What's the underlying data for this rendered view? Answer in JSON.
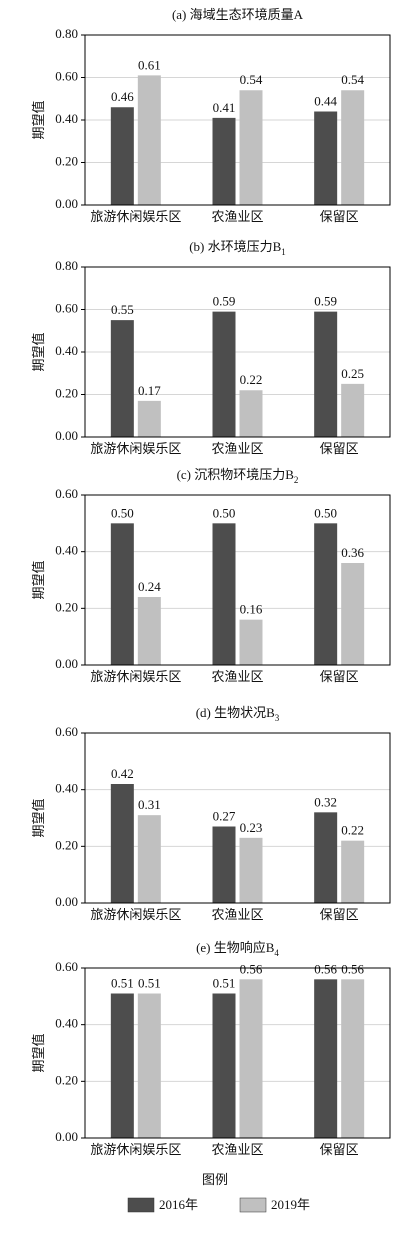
{
  "chart_data": [
    {
      "type": "bar",
      "title": "(a) 海域生态环境质量A",
      "title_sub": null,
      "ylabel": "期望值",
      "categories": [
        "旅游休闲娱乐区",
        "农渔业区",
        "保留区"
      ],
      "series": [
        {
          "color": "#4d4d4d",
          "values": [
            0.46,
            0.41,
            0.44
          ],
          "value_labels": [
            "0.46",
            "0.41",
            "0.44"
          ]
        },
        {
          "color": "#c0c0c0",
          "values": [
            0.61,
            0.54,
            0.54
          ],
          "value_labels": [
            "0.61",
            "0.54",
            "0.54"
          ]
        }
      ],
      "ylim": [
        0,
        0.8
      ],
      "yticks": [
        {
          "value": 0,
          "label": "0.00"
        },
        {
          "value": 0.2,
          "label": "0.20"
        },
        {
          "value": 0.4,
          "label": "0.40"
        },
        {
          "value": 0.6,
          "label": "0.60"
        },
        {
          "value": 0.8,
          "label": "0.80"
        }
      ],
      "grid": true
    },
    {
      "type": "bar",
      "title": "(b) 水环境压力B",
      "title_sub": "1",
      "ylabel": "期望值",
      "categories": [
        "旅游休闲娱乐区",
        "农渔业区",
        "保留区"
      ],
      "series": [
        {
          "color": "#4d4d4d",
          "values": [
            0.55,
            0.59,
            0.59
          ],
          "value_labels": [
            "0.55",
            "0.59",
            "0.59"
          ]
        },
        {
          "color": "#c0c0c0",
          "values": [
            0.17,
            0.22,
            0.25
          ],
          "value_labels": [
            "0.17",
            "0.22",
            "0.25"
          ]
        }
      ],
      "ylim": [
        0,
        0.8
      ],
      "yticks": [
        {
          "value": 0,
          "label": "0.00"
        },
        {
          "value": 0.2,
          "label": "0.20"
        },
        {
          "value": 0.4,
          "label": "0.40"
        },
        {
          "value": 0.6,
          "label": "0.60"
        },
        {
          "value": 0.8,
          "label": "0.80"
        }
      ],
      "grid": true
    },
    {
      "type": "bar",
      "title": "(c) 沉积物环境压力B",
      "title_sub": "2",
      "ylabel": "期望值",
      "categories": [
        "旅游休闲娱乐区",
        "农渔业区",
        "保留区"
      ],
      "series": [
        {
          "color": "#4d4d4d",
          "values": [
            0.5,
            0.5,
            0.5
          ],
          "value_labels": [
            "0.50",
            "0.50",
            "0.50"
          ]
        },
        {
          "color": "#c0c0c0",
          "values": [
            0.24,
            0.16,
            0.36
          ],
          "value_labels": [
            "0.24",
            "0.16",
            "0.36"
          ]
        }
      ],
      "ylim": [
        0,
        0.6
      ],
      "yticks": [
        {
          "value": 0,
          "label": "0.00"
        },
        {
          "value": 0.2,
          "label": "0.20"
        },
        {
          "value": 0.4,
          "label": "0.40"
        },
        {
          "value": 0.6,
          "label": "0.60"
        }
      ],
      "grid": true
    },
    {
      "type": "bar",
      "title": "(d) 生物状况B",
      "title_sub": "3",
      "ylabel": "期望值",
      "categories": [
        "旅游休闲娱乐区",
        "农渔业区",
        "保留区"
      ],
      "series": [
        {
          "color": "#4d4d4d",
          "values": [
            0.42,
            0.27,
            0.32
          ],
          "value_labels": [
            "0.42",
            "0.27",
            "0.32"
          ]
        },
        {
          "color": "#c0c0c0",
          "values": [
            0.31,
            0.23,
            0.22
          ],
          "value_labels": [
            "0.31",
            "0.23",
            "0.22"
          ]
        }
      ],
      "ylim": [
        0,
        0.6
      ],
      "yticks": [
        {
          "value": 0,
          "label": "0.00"
        },
        {
          "value": 0.2,
          "label": "0.20"
        },
        {
          "value": 0.4,
          "label": "0.40"
        },
        {
          "value": 0.6,
          "label": "0.60"
        }
      ],
      "grid": true
    },
    {
      "type": "bar",
      "title": "(e) 生物响应B",
      "title_sub": "4",
      "ylabel": "期望值",
      "categories": [
        "旅游休闲娱乐区",
        "农渔业区",
        "保留区"
      ],
      "series": [
        {
          "color": "#4d4d4d",
          "values": [
            0.51,
            0.51,
            0.56
          ],
          "value_labels": [
            "0.51",
            "0.51",
            "0.56"
          ]
        },
        {
          "color": "#c0c0c0",
          "values": [
            0.51,
            0.56,
            0.56
          ],
          "value_labels": [
            "0.51",
            "0.56",
            "0.56"
          ]
        }
      ],
      "ylim": [
        0,
        0.6
      ],
      "yticks": [
        {
          "value": 0,
          "label": "0.00"
        },
        {
          "value": 0.2,
          "label": "0.20"
        },
        {
          "value": 0.4,
          "label": "0.40"
        },
        {
          "value": 0.6,
          "label": "0.60"
        }
      ],
      "grid": true
    }
  ],
  "legend": {
    "title": "图例",
    "items": [
      {
        "name": "2016年",
        "color": "#4d4d4d"
      },
      {
        "name": "2019年",
        "color": "#c0c0c0"
      }
    ]
  }
}
